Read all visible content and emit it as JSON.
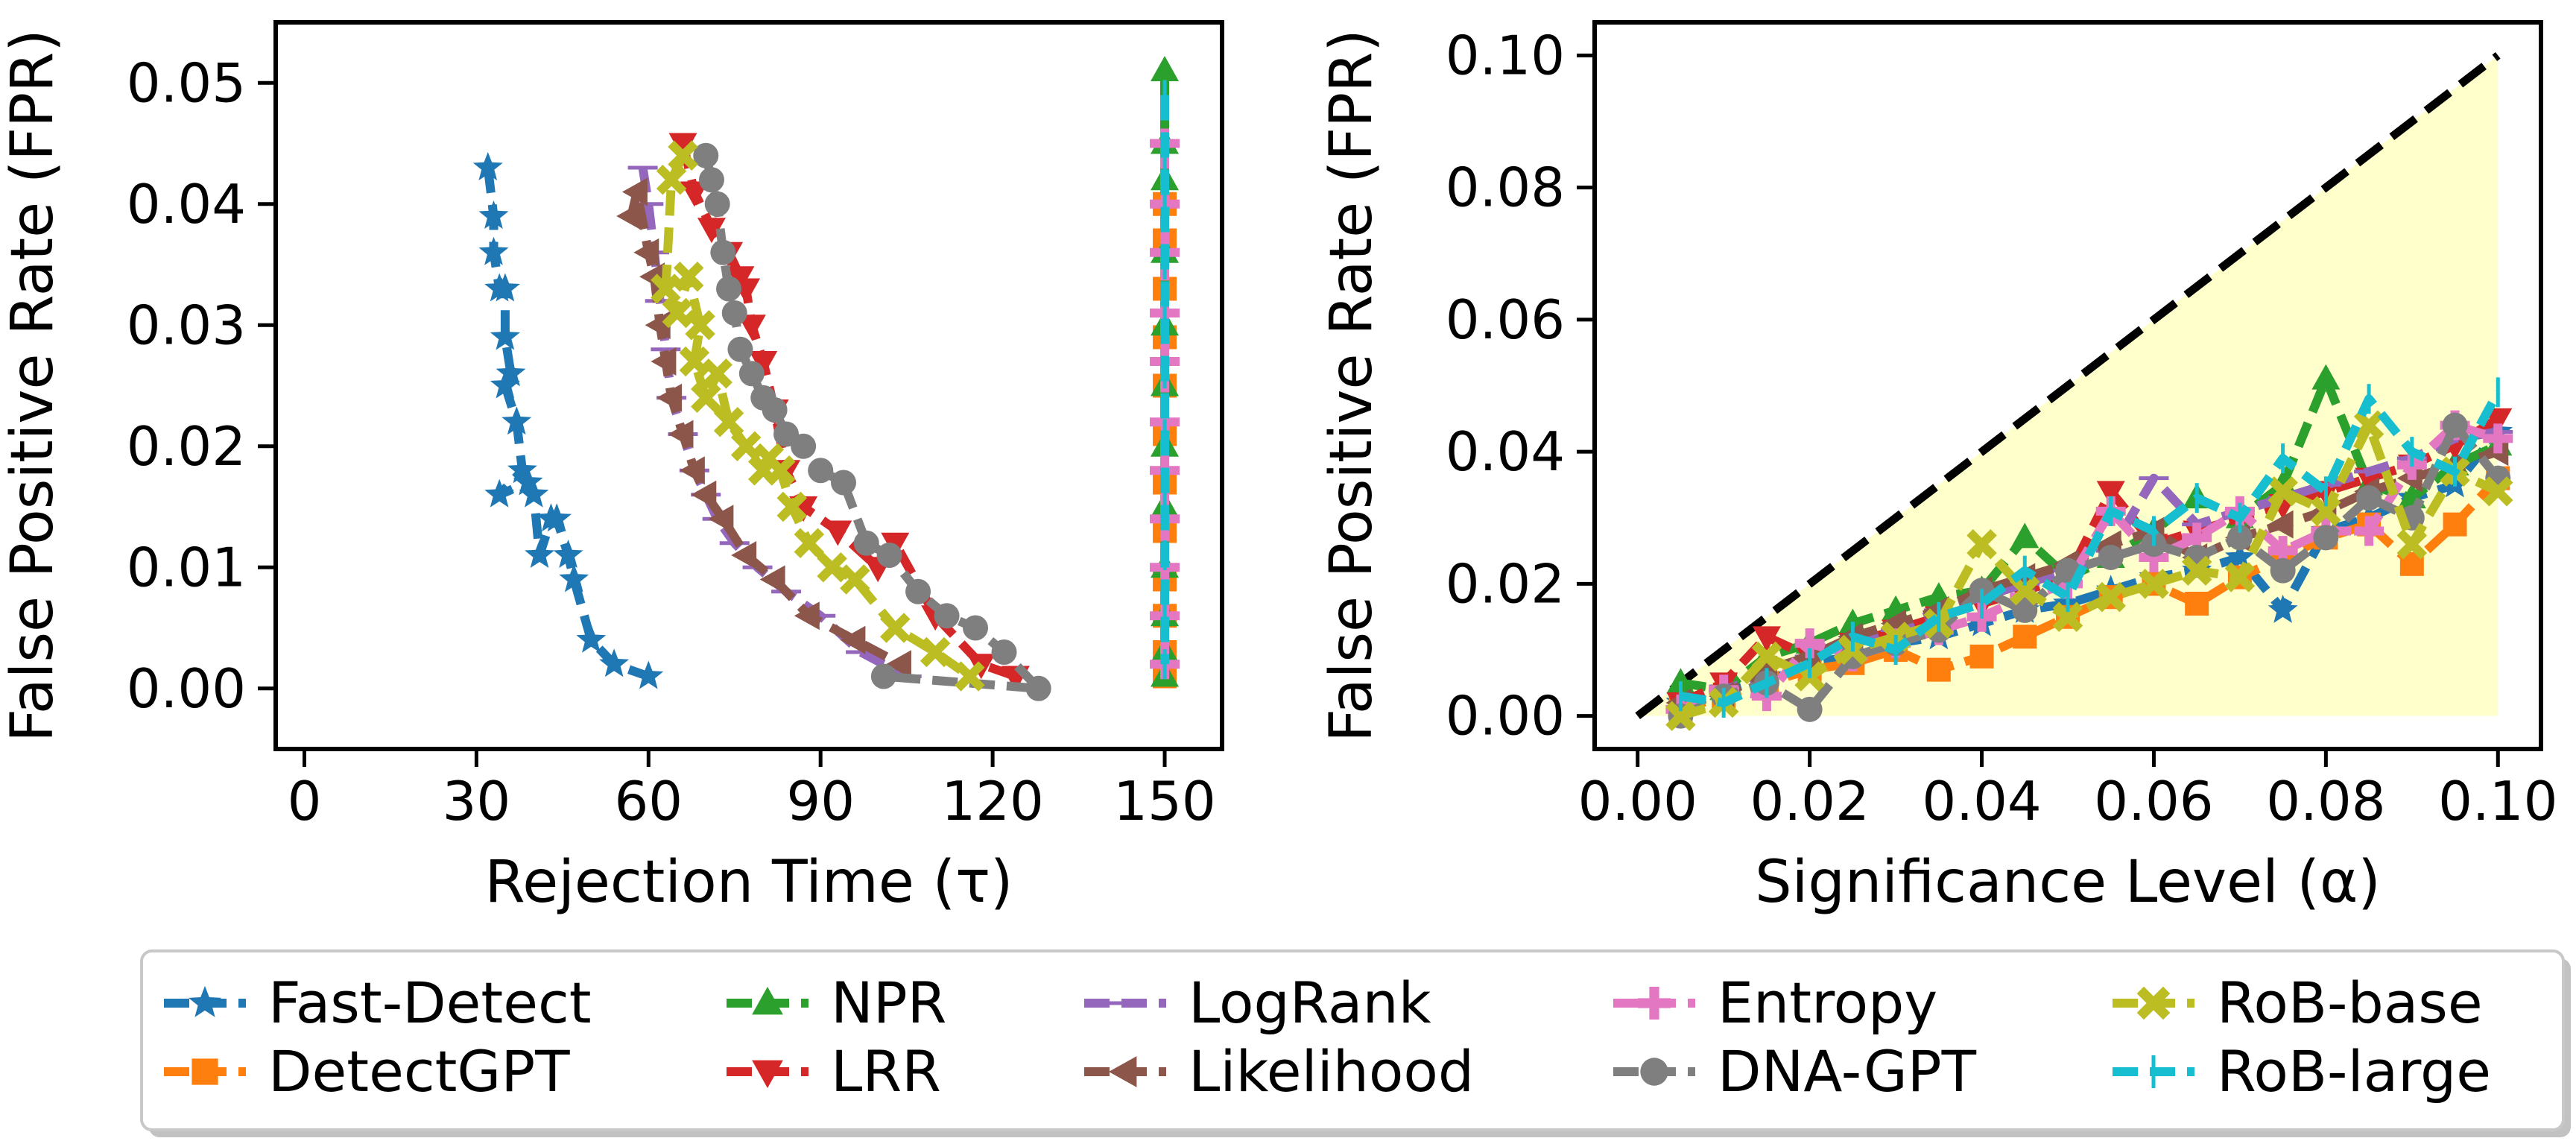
{
  "legend": [
    {
      "name": "Fast-Detect",
      "color": "#1f77b4",
      "marker": "star"
    },
    {
      "name": "DetectGPT",
      "color": "#ff7f0e",
      "marker": "square"
    },
    {
      "name": "NPR",
      "color": "#2ca02c",
      "marker": "triangle-up"
    },
    {
      "name": "LRR",
      "color": "#d62728",
      "marker": "triangle-down"
    },
    {
      "name": "LogRank",
      "color": "#9467bd",
      "marker": "hline"
    },
    {
      "name": "Likelihood",
      "color": "#8c564b",
      "marker": "triangle-left"
    },
    {
      "name": "Entropy",
      "color": "#e377c2",
      "marker": "plus"
    },
    {
      "name": "DNA-GPT",
      "color": "#7f7f7f",
      "marker": "circle"
    },
    {
      "name": "RoB-base",
      "color": "#bcbd22",
      "marker": "x"
    },
    {
      "name": "RoB-large",
      "color": "#17becf",
      "marker": "vline"
    }
  ],
  "chart_data": [
    {
      "type": "line",
      "xlabel": "Rejection Time (τ)",
      "ylabel": "False Positive Rate (FPR)",
      "xlim": [
        -5,
        160
      ],
      "ylim": [
        -0.005,
        0.055
      ],
      "xticks": [
        0,
        30,
        60,
        90,
        120,
        150
      ],
      "xtick_labels": [
        "0",
        "30",
        "60",
        "90",
        "120",
        "150"
      ],
      "yticks": [
        0.0,
        0.01,
        0.02,
        0.03,
        0.04,
        0.05
      ],
      "ytick_labels": [
        "0.00",
        "0.01",
        "0.02",
        "0.03",
        "0.04",
        "0.05"
      ],
      "series": [
        {
          "name": "Fast-Detect",
          "x": [
            32,
            33,
            33,
            34,
            35,
            35,
            36,
            35,
            37,
            38,
            34,
            39,
            40,
            41,
            43,
            44,
            46,
            47,
            50,
            54,
            60
          ],
          "y": [
            0.043,
            0.039,
            0.036,
            0.033,
            0.033,
            0.029,
            0.026,
            0.025,
            0.022,
            0.018,
            0.016,
            0.017,
            0.016,
            0.011,
            0.014,
            0.014,
            0.011,
            0.009,
            0.004,
            0.002,
            0.001
          ]
        },
        {
          "name": "DetectGPT",
          "x": [
            150,
            150,
            150,
            150,
            150,
            150,
            150,
            150,
            150,
            150,
            150,
            150
          ],
          "y": [
            0.001,
            0.003,
            0.006,
            0.009,
            0.013,
            0.017,
            0.021,
            0.025,
            0.029,
            0.033,
            0.037,
            0.04
          ]
        },
        {
          "name": "NPR",
          "x": [
            150,
            150,
            150,
            150,
            150,
            150,
            150,
            150,
            150,
            150,
            150,
            150
          ],
          "y": [
            0.051,
            0.045,
            0.042,
            0.036,
            0.03,
            0.025,
            0.02,
            0.015,
            0.01,
            0.006,
            0.003,
            0.001
          ]
        },
        {
          "name": "LRR",
          "x": [
            66,
            68,
            71,
            74,
            76,
            77,
            78,
            80,
            82,
            84,
            87,
            93,
            100,
            103,
            110,
            118,
            124
          ],
          "y": [
            0.045,
            0.041,
            0.038,
            0.036,
            0.034,
            0.033,
            0.03,
            0.027,
            0.023,
            0.018,
            0.015,
            0.013,
            0.01,
            0.012,
            0.006,
            0.002,
            0.001
          ]
        },
        {
          "name": "LogRank",
          "x": [
            59,
            60,
            61,
            62,
            63,
            64,
            66,
            68,
            70,
            72,
            75,
            79,
            84,
            90,
            97,
            105
          ],
          "y": [
            0.043,
            0.04,
            0.036,
            0.032,
            0.028,
            0.024,
            0.021,
            0.018,
            0.016,
            0.014,
            0.012,
            0.01,
            0.008,
            0.006,
            0.003,
            0.001
          ]
        },
        {
          "name": "Likelihood",
          "x": [
            57,
            58,
            60,
            61,
            62,
            63,
            64,
            66,
            68,
            70,
            73,
            77,
            82,
            88,
            96,
            104
          ],
          "y": [
            0.039,
            0.041,
            0.036,
            0.034,
            0.03,
            0.027,
            0.024,
            0.021,
            0.018,
            0.016,
            0.014,
            0.011,
            0.009,
            0.006,
            0.004,
            0.002
          ]
        },
        {
          "name": "Entropy",
          "x": [
            150,
            150,
            150,
            150,
            150,
            150,
            150,
            150,
            150,
            150,
            150
          ],
          "y": [
            0.045,
            0.04,
            0.036,
            0.031,
            0.027,
            0.022,
            0.018,
            0.014,
            0.01,
            0.006,
            0.002
          ]
        },
        {
          "name": "DNA-GPT",
          "x": [
            70,
            71,
            72,
            73,
            74,
            75,
            76,
            78,
            80,
            82,
            84,
            87,
            90,
            94,
            98,
            102,
            107,
            112,
            117,
            122,
            128,
            101
          ],
          "y": [
            0.044,
            0.042,
            0.04,
            0.036,
            0.033,
            0.031,
            0.028,
            0.026,
            0.024,
            0.023,
            0.021,
            0.02,
            0.018,
            0.017,
            0.012,
            0.011,
            0.008,
            0.006,
            0.005,
            0.003,
            0.0,
            0.001
          ]
        },
        {
          "name": "RoB-base",
          "x": [
            66,
            64,
            63,
            65,
            67,
            69,
            68,
            70,
            72,
            74,
            77,
            80,
            81,
            83,
            85,
            88,
            92,
            96,
            103,
            110,
            116
          ],
          "y": [
            0.044,
            0.042,
            0.033,
            0.031,
            0.034,
            0.03,
            0.027,
            0.024,
            0.026,
            0.022,
            0.02,
            0.018,
            0.019,
            0.018,
            0.015,
            0.012,
            0.01,
            0.009,
            0.005,
            0.003,
            0.001
          ]
        },
        {
          "name": "RoB-large",
          "x": [
            150,
            150,
            150,
            150,
            150,
            150,
            150,
            150,
            150,
            150,
            150
          ],
          "y": [
            0.049,
            0.044,
            0.04,
            0.035,
            0.031,
            0.026,
            0.021,
            0.016,
            0.011,
            0.006,
            0.002
          ]
        }
      ]
    },
    {
      "type": "line",
      "xlabel": "Significance Level (α)",
      "ylabel": "False Positive Rate (FPR)",
      "xlim": [
        -0.005,
        0.105
      ],
      "ylim": [
        -0.005,
        0.105
      ],
      "xticks": [
        0.0,
        0.02,
        0.04,
        0.06,
        0.08,
        0.1
      ],
      "xtick_labels": [
        "0.00",
        "0.02",
        "0.04",
        "0.06",
        "0.08",
        "0.10"
      ],
      "yticks": [
        0.0,
        0.02,
        0.04,
        0.06,
        0.08,
        0.1
      ],
      "ytick_labels": [
        "0.00",
        "0.02",
        "0.04",
        "0.06",
        "0.08",
        "0.10"
      ],
      "reference_line": {
        "x": [
          0.0,
          0.1
        ],
        "y": [
          0.0,
          0.1
        ],
        "style": "dashed",
        "color": "#000000"
      },
      "shaded_region": {
        "color": "#ffffcc",
        "x": [
          0.0,
          0.1
        ]
      },
      "series": [
        {
          "name": "Fast-Detect",
          "x": [
            0.005,
            0.01,
            0.015,
            0.02,
            0.025,
            0.03,
            0.035,
            0.04,
            0.045,
            0.05,
            0.055,
            0.06,
            0.065,
            0.07,
            0.075,
            0.08,
            0.085,
            0.09,
            0.095,
            0.1
          ],
          "y": [
            0.002,
            0.004,
            0.006,
            0.008,
            0.009,
            0.011,
            0.012,
            0.014,
            0.016,
            0.017,
            0.019,
            0.021,
            0.022,
            0.024,
            0.016,
            0.028,
            0.03,
            0.033,
            0.035,
            0.043
          ]
        },
        {
          "name": "DetectGPT",
          "x": [
            0.005,
            0.01,
            0.015,
            0.02,
            0.025,
            0.03,
            0.035,
            0.04,
            0.045,
            0.05,
            0.055,
            0.06,
            0.065,
            0.07,
            0.075,
            0.08,
            0.085,
            0.09,
            0.095,
            0.1
          ],
          "y": [
            0.001,
            0.003,
            0.005,
            0.007,
            0.008,
            0.01,
            0.007,
            0.009,
            0.012,
            0.015,
            0.018,
            0.02,
            0.017,
            0.021,
            0.024,
            0.027,
            0.029,
            0.023,
            0.029,
            0.036
          ]
        },
        {
          "name": "NPR",
          "x": [
            0.005,
            0.01,
            0.015,
            0.02,
            0.025,
            0.03,
            0.035,
            0.04,
            0.045,
            0.05,
            0.055,
            0.06,
            0.065,
            0.07,
            0.075,
            0.08,
            0.085,
            0.09,
            0.095,
            0.1
          ],
          "y": [
            0.005,
            0.004,
            0.009,
            0.011,
            0.014,
            0.016,
            0.018,
            0.019,
            0.027,
            0.021,
            0.024,
            0.028,
            0.033,
            0.03,
            0.035,
            0.051,
            0.035,
            0.033,
            0.038,
            0.041
          ]
        },
        {
          "name": "LRR",
          "x": [
            0.005,
            0.01,
            0.015,
            0.02,
            0.025,
            0.03,
            0.035,
            0.04,
            0.045,
            0.05,
            0.055,
            0.06,
            0.065,
            0.07,
            0.075,
            0.08,
            0.085,
            0.09,
            0.095,
            0.1
          ],
          "y": [
            0.002,
            0.005,
            0.012,
            0.009,
            0.011,
            0.013,
            0.015,
            0.017,
            0.019,
            0.021,
            0.034,
            0.026,
            0.028,
            0.03,
            0.032,
            0.034,
            0.036,
            0.038,
            0.041,
            0.045
          ]
        },
        {
          "name": "LogRank",
          "x": [
            0.005,
            0.01,
            0.015,
            0.02,
            0.025,
            0.03,
            0.035,
            0.04,
            0.045,
            0.05,
            0.055,
            0.06,
            0.065,
            0.07,
            0.075,
            0.08,
            0.085,
            0.09,
            0.095,
            0.1
          ],
          "y": [
            0.001,
            0.004,
            0.006,
            0.009,
            0.011,
            0.013,
            0.016,
            0.018,
            0.02,
            0.022,
            0.025,
            0.036,
            0.029,
            0.031,
            0.033,
            0.035,
            0.037,
            0.039,
            0.042,
            0.043
          ]
        },
        {
          "name": "Likelihood",
          "x": [
            0.005,
            0.01,
            0.015,
            0.02,
            0.025,
            0.03,
            0.035,
            0.04,
            0.045,
            0.05,
            0.055,
            0.06,
            0.065,
            0.07,
            0.075,
            0.08,
            0.085,
            0.09,
            0.095,
            0.1
          ],
          "y": [
            0.002,
            0.003,
            0.007,
            0.009,
            0.012,
            0.014,
            0.016,
            0.019,
            0.021,
            0.023,
            0.026,
            0.028,
            0.024,
            0.027,
            0.029,
            0.031,
            0.034,
            0.036,
            0.038,
            0.04
          ]
        },
        {
          "name": "Entropy",
          "x": [
            0.005,
            0.01,
            0.015,
            0.02,
            0.025,
            0.03,
            0.035,
            0.04,
            0.045,
            0.05,
            0.055,
            0.06,
            0.065,
            0.07,
            0.075,
            0.08,
            0.085,
            0.09,
            0.095,
            0.1
          ],
          "y": [
            0.001,
            0.004,
            0.003,
            0.011,
            0.009,
            0.011,
            0.013,
            0.015,
            0.018,
            0.02,
            0.031,
            0.024,
            0.027,
            0.031,
            0.025,
            0.028,
            0.028,
            0.038,
            0.044,
            0.042
          ]
        },
        {
          "name": "DNA-GPT",
          "x": [
            0.005,
            0.01,
            0.015,
            0.02,
            0.025,
            0.03,
            0.035,
            0.04,
            0.045,
            0.05,
            0.055,
            0.06,
            0.065,
            0.07,
            0.075,
            0.08,
            0.085,
            0.09,
            0.095,
            0.1
          ],
          "y": [
            0.0,
            0.003,
            0.005,
            0.001,
            0.009,
            0.011,
            0.013,
            0.019,
            0.016,
            0.022,
            0.024,
            0.026,
            0.024,
            0.027,
            0.022,
            0.027,
            0.033,
            0.03,
            0.044,
            0.036
          ]
        },
        {
          "name": "RoB-base",
          "x": [
            0.005,
            0.01,
            0.015,
            0.02,
            0.025,
            0.03,
            0.035,
            0.04,
            0.045,
            0.05,
            0.055,
            0.06,
            0.065,
            0.07,
            0.075,
            0.08,
            0.085,
            0.09,
            0.095,
            0.1
          ],
          "y": [
            0.0,
            0.002,
            0.009,
            0.006,
            0.01,
            0.012,
            0.014,
            0.026,
            0.019,
            0.015,
            0.018,
            0.02,
            0.022,
            0.021,
            0.034,
            0.031,
            0.044,
            0.026,
            0.037,
            0.034
          ]
        },
        {
          "name": "RoB-large",
          "x": [
            0.005,
            0.01,
            0.015,
            0.02,
            0.025,
            0.03,
            0.035,
            0.04,
            0.045,
            0.05,
            0.055,
            0.06,
            0.065,
            0.07,
            0.075,
            0.08,
            0.085,
            0.09,
            0.095,
            0.1
          ],
          "y": [
            0.003,
            0.002,
            0.005,
            0.008,
            0.012,
            0.01,
            0.015,
            0.017,
            0.022,
            0.018,
            0.031,
            0.028,
            0.033,
            0.03,
            0.039,
            0.034,
            0.048,
            0.04,
            0.037,
            0.049
          ]
        }
      ]
    }
  ]
}
